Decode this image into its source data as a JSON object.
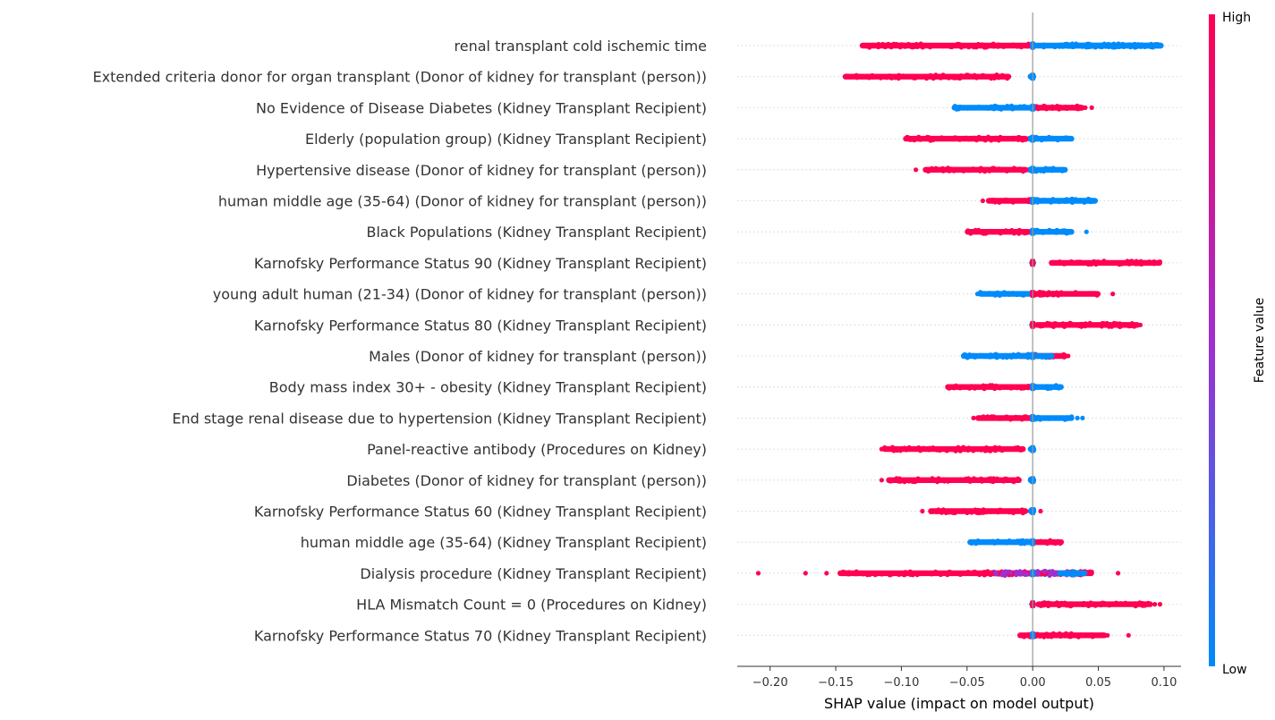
{
  "chart_data": {
    "type": "scatter",
    "subtype": "shap-beeswarm",
    "title": "",
    "xlabel": "SHAP value (impact on model output)",
    "ylabel": "",
    "xlim": [
      -0.225,
      0.113
    ],
    "xticks": [
      -0.2,
      -0.15,
      -0.1,
      -0.05,
      0.0,
      0.05,
      0.1
    ],
    "xtick_labels": [
      "−0.20",
      "−0.15",
      "−0.10",
      "−0.05",
      "0.00",
      "0.05",
      "0.10"
    ],
    "colorbar": {
      "label": "Feature value",
      "high_label": "High",
      "low_label": "Low",
      "high_color": "#ff0052",
      "low_color": "#008bfb",
      "mid_color": "#a02ed0"
    },
    "grid": false,
    "features": [
      {
        "name": "renal transplant cold ischemic time ",
        "high_range": [
          -0.13,
          0.0
        ],
        "low_range": [
          0.0,
          0.098
        ],
        "high_outliers": [
          -0.13,
          -0.12
        ],
        "low_outliers": [
          0.098
        ],
        "mixed": true
      },
      {
        "name": "Extended criteria donor for organ transplant  (Donor of kidney for transplant (person))",
        "high_range": [
          -0.143,
          -0.018
        ],
        "low_range": [
          -0.002,
          0.001
        ],
        "high_outliers": [],
        "low_outliers": []
      },
      {
        "name": "No Evidence of Disease Diabetes (Kidney Transplant Recipient)",
        "high_range": [
          0.0,
          0.038
        ],
        "low_range": [
          -0.06,
          0.0
        ],
        "high_outliers": [
          0.04,
          0.045
        ],
        "low_outliers": []
      },
      {
        "name": "Elderly (population group)  (Kidney Transplant Recipient)",
        "high_range": [
          -0.097,
          -0.005
        ],
        "low_range": [
          -0.003,
          0.03
        ],
        "high_outliers": [],
        "low_outliers": []
      },
      {
        "name": "Hypertensive disease  (Donor of kidney for transplant (person))",
        "high_range": [
          -0.082,
          -0.005
        ],
        "low_range": [
          -0.003,
          0.025
        ],
        "high_outliers": [
          -0.089
        ],
        "low_outliers": []
      },
      {
        "name": "human middle age (35-64)  (Donor of kidney for transplant (person))",
        "high_range": [
          -0.034,
          0.0
        ],
        "low_range": [
          0.0,
          0.048
        ],
        "high_outliers": [
          -0.038
        ],
        "low_outliers": []
      },
      {
        "name": "Black Populations  (Kidney Transplant Recipient)",
        "high_range": [
          -0.05,
          -0.003
        ],
        "low_range": [
          -0.002,
          0.03
        ],
        "high_outliers": [],
        "low_outliers": [
          0.041
        ]
      },
      {
        "name": "Karnofsky Performance Status 90  (Kidney Transplant Recipient)",
        "high_range": [
          0.014,
          0.097
        ],
        "low_range": [
          -0.001,
          0.001
        ],
        "high_outliers": [],
        "low_outliers": []
      },
      {
        "name": "young adult human (21-34)  (Donor of kidney for transplant (person))",
        "high_range": [
          0.0,
          0.05
        ],
        "low_range": [
          -0.04,
          0.0
        ],
        "high_outliers": [
          0.061
        ],
        "low_outliers": [
          -0.042
        ]
      },
      {
        "name": "Karnofsky Performance Status 80  (Kidney Transplant Recipient)",
        "high_range": [
          0.003,
          0.08
        ],
        "low_range": [
          -0.001,
          0.001
        ],
        "high_outliers": [
          0.082
        ],
        "low_outliers": []
      },
      {
        "name": "Males  (Donor of kidney for transplant (person))",
        "high_range": [
          -0.01,
          0.025
        ],
        "low_range": [
          -0.053,
          0.015
        ],
        "high_outliers": [
          0.027
        ],
        "low_outliers": []
      },
      {
        "name": "Body mass index 30+ - obesity  (Kidney Transplant Recipient)",
        "high_range": [
          -0.065,
          -0.002
        ],
        "low_range": [
          -0.002,
          0.022
        ],
        "high_outliers": [],
        "low_outliers": []
      },
      {
        "name": "End stage renal disease due to hypertension  (Kidney Transplant Recipient)",
        "high_range": [
          -0.042,
          -0.001
        ],
        "low_range": [
          -0.001,
          0.03
        ],
        "high_outliers": [
          -0.045
        ],
        "low_outliers": [
          0.034,
          0.038
        ]
      },
      {
        "name": "Panel-reactive antibody  (Procedures on Kidney)",
        "high_range": [
          -0.113,
          -0.007
        ],
        "low_range": [
          -0.002,
          0.001
        ],
        "high_outliers": [
          -0.115
        ],
        "low_outliers": []
      },
      {
        "name": "Diabetes  (Donor of kidney for transplant (person))",
        "high_range": [
          -0.11,
          -0.01
        ],
        "low_range": [
          -0.002,
          0.001
        ],
        "high_outliers": [
          -0.115
        ],
        "low_outliers": []
      },
      {
        "name": "Karnofsky Performance Status 60  (Kidney Transplant Recipient)",
        "high_range": [
          -0.078,
          -0.005
        ],
        "low_range": [
          -0.002,
          0.001
        ],
        "high_outliers": [
          -0.084,
          0.006
        ],
        "low_outliers": []
      },
      {
        "name": "human middle age (35-64)  (Kidney Transplant Recipient)",
        "high_range": [
          0.0,
          0.022
        ],
        "low_range": [
          -0.048,
          0.0
        ],
        "high_outliers": [],
        "low_outliers": []
      },
      {
        "name": "Dialysis procedure  (Kidney Transplant Recipient)",
        "high_range": [
          -0.147,
          0.045
        ],
        "low_range": [
          -0.035,
          0.04
        ],
        "high_outliers": [
          -0.209,
          -0.173,
          -0.157,
          0.065
        ],
        "low_outliers": [],
        "mixed": true
      },
      {
        "name": "HLA Mismatch Count = 0 (Procedures on Kidney)",
        "high_range": [
          0.004,
          0.09
        ],
        "low_range": [
          -0.001,
          0.001
        ],
        "high_outliers": [
          0.093,
          0.097
        ],
        "low_outliers": []
      },
      {
        "name": "Karnofsky Performance Status 70  (Kidney Transplant Recipient)",
        "high_range": [
          -0.01,
          0.055
        ],
        "low_range": [
          -0.002,
          0.001
        ],
        "high_outliers": [
          0.057,
          0.073
        ],
        "low_outliers": []
      }
    ]
  }
}
